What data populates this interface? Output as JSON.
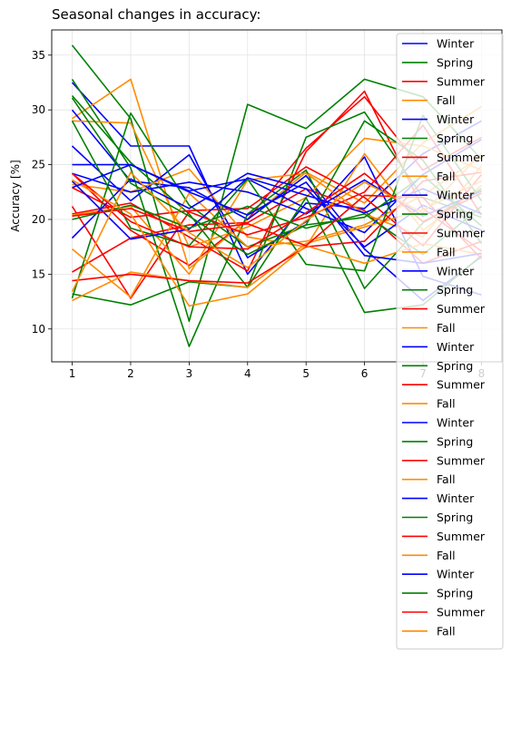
{
  "chart_data": {
    "type": "line",
    "title": "Seasonal changes in accuracy:",
    "xlabel": "",
    "ylabel": "Accuracy [%]",
    "x": [
      1,
      2,
      3,
      4,
      5,
      6,
      7,
      8
    ],
    "xticks": [
      "1",
      "2",
      "3",
      "4",
      "5",
      "6",
      "7",
      "8"
    ],
    "yticks": [
      "10",
      "15",
      "20",
      "25",
      "30",
      "35"
    ],
    "xlim": [
      0.65,
      8.35
    ],
    "ylim": [
      7.0,
      37.3
    ],
    "grid": true,
    "legend_position": "top-right",
    "colors": {
      "Winter": "#0000ff",
      "Spring": "#008000",
      "Summer": "#ff0000",
      "Fall": "#ff8c00"
    },
    "series": [
      {
        "name": "Winter",
        "values": [
          32.5,
          26.7,
          26.7,
          15.0,
          21.5,
          21.0,
          26.0,
          29.0
        ]
      },
      {
        "name": "Spring",
        "values": [
          35.9,
          29.2,
          10.7,
          30.5,
          28.3,
          32.8,
          31.2,
          25.5
        ]
      },
      {
        "name": "Summer",
        "values": [
          24.2,
          19.0,
          15.8,
          20.0,
          26.5,
          31.2,
          24.5,
          27.5
        ]
      },
      {
        "name": "Fall",
        "values": [
          29.2,
          32.8,
          15.5,
          20.0,
          24.3,
          21.5,
          27.0,
          30.3
        ]
      },
      {
        "name": "Winter",
        "values": [
          30.0,
          23.5,
          22.9,
          20.0,
          24.0,
          17.3,
          12.6,
          16.6
        ]
      },
      {
        "name": "Spring",
        "values": [
          32.8,
          24.7,
          8.4,
          20.5,
          24.5,
          13.7,
          19.7,
          22.8
        ]
      },
      {
        "name": "Summer",
        "values": [
          20.5,
          21.5,
          18.4,
          15.3,
          26.2,
          31.7,
          21.0,
          17.1
        ]
      },
      {
        "name": "Fall",
        "values": [
          29.0,
          28.8,
          17.5,
          19.3,
          22.0,
          27.4,
          26.7,
          24.5
        ]
      },
      {
        "name": "Winter",
        "values": [
          26.7,
          21.7,
          25.9,
          16.5,
          19.8,
          25.7,
          14.8,
          13.1
        ]
      },
      {
        "name": "Spring",
        "values": [
          31.3,
          25.2,
          20.5,
          13.8,
          27.5,
          29.8,
          22.0,
          20.2
        ]
      },
      {
        "name": "Summer",
        "values": [
          15.2,
          18.3,
          19.5,
          19.7,
          22.8,
          20.8,
          16.0,
          18.0
        ]
      },
      {
        "name": "Fall",
        "values": [
          23.2,
          22.5,
          24.6,
          18.4,
          17.5,
          26.0,
          19.0,
          23.1
        ]
      },
      {
        "name": "Winter",
        "values": [
          25.0,
          25.0,
          22.6,
          23.7,
          21.0,
          18.8,
          24.1,
          27.3
        ]
      },
      {
        "name": "Spring",
        "values": [
          12.8,
          29.7,
          21.3,
          17.5,
          19.5,
          29.0,
          25.4,
          17.8
        ]
      },
      {
        "name": "Summer",
        "values": [
          21.2,
          12.8,
          20.7,
          18.6,
          20.2,
          22.5,
          28.6,
          20.4
        ]
      },
      {
        "name": "Fall",
        "values": [
          20.4,
          21.2,
          15.0,
          23.6,
          24.2,
          20.5,
          18.4,
          24.9
        ]
      },
      {
        "name": "Winter",
        "values": [
          24.2,
          22.5,
          23.4,
          22.5,
          20.5,
          23.6,
          20.3,
          22.6
        ]
      },
      {
        "name": "Spring",
        "values": [
          13.2,
          12.2,
          14.3,
          13.8,
          22.0,
          11.5,
          12.2,
          16.7
        ]
      },
      {
        "name": "Summer",
        "values": [
          22.9,
          20.2,
          20.8,
          21.0,
          24.8,
          22.0,
          17.6,
          24.1
        ]
      },
      {
        "name": "Fall",
        "values": [
          17.3,
          12.9,
          22.4,
          17.5,
          18.0,
          19.5,
          22.2,
          25.8
        ]
      },
      {
        "name": "Winter",
        "values": [
          18.3,
          23.7,
          21.0,
          24.2,
          22.8,
          17.5,
          21.3,
          19.0
        ]
      },
      {
        "name": "Spring",
        "values": [
          29.0,
          19.2,
          17.6,
          23.7,
          15.9,
          15.3,
          29.5,
          21.7
        ]
      },
      {
        "name": "Summer",
        "values": [
          24.2,
          19.8,
          17.5,
          17.3,
          20.6,
          24.2,
          19.8,
          22.4
        ]
      },
      {
        "name": "Fall",
        "values": [
          12.6,
          15.2,
          14.4,
          13.8,
          17.8,
          19.3,
          20.9,
          23.5
        ]
      },
      {
        "name": "Winter",
        "values": [
          23.5,
          18.2,
          19.1,
          23.8,
          22.2,
          20.6,
          22.8,
          20.5
        ]
      },
      {
        "name": "Spring",
        "values": [
          20.0,
          21.3,
          19.2,
          21.2,
          19.2,
          20.5,
          16.8,
          21.2
        ]
      },
      {
        "name": "Summer",
        "values": [
          14.4,
          15.0,
          14.4,
          14.2,
          17.5,
          18.0,
          23.5,
          24.3
        ]
      },
      {
        "name": "Fall",
        "values": [
          23.6,
          20.5,
          12.1,
          13.2,
          17.6,
          16.0,
          17.8,
          16.8
        ]
      },
      {
        "name": "Winter",
        "values": [
          22.9,
          25.0,
          22.5,
          20.4,
          23.4,
          16.7,
          16.0,
          16.9
        ]
      },
      {
        "name": "Spring",
        "values": [
          31.1,
          23.3,
          20.3,
          16.8,
          19.5,
          20.2,
          24.0,
          19.4
        ]
      },
      {
        "name": "Summer",
        "values": [
          20.3,
          21.0,
          18.9,
          19.6,
          17.6,
          22.2,
          22.0,
          16.4
        ]
      },
      {
        "name": "Fall",
        "values": [
          13.4,
          24.3,
          18.8,
          15.6,
          19.9,
          23.4,
          20.6,
          26.0
        ]
      }
    ]
  }
}
